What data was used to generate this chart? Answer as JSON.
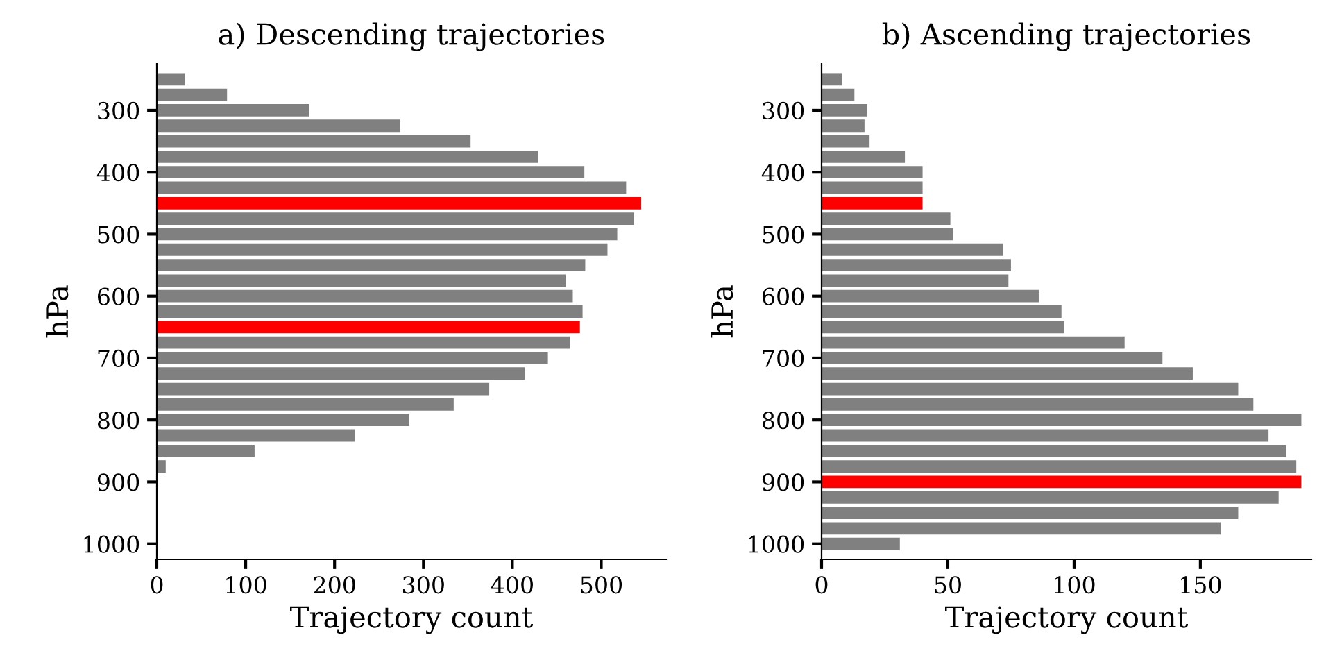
{
  "chart_data": [
    {
      "type": "bar",
      "orientation": "horizontal",
      "title": "a) Descending trajectories",
      "xlabel": "Trajectory count",
      "ylabel": "hPa",
      "x": [
        250,
        275,
        300,
        325,
        350,
        375,
        400,
        425,
        450,
        475,
        500,
        525,
        550,
        575,
        600,
        625,
        650,
        675,
        700,
        725,
        750,
        775,
        800,
        825,
        850,
        875,
        900,
        925,
        950,
        975,
        1000
      ],
      "values": [
        32,
        79,
        171,
        274,
        353,
        429,
        481,
        528,
        545,
        537,
        518,
        507,
        482,
        460,
        468,
        479,
        476,
        465,
        440,
        414,
        374,
        334,
        284,
        223,
        110,
        10,
        0,
        0,
        0,
        0,
        0
      ],
      "colors": [
        "#808080",
        "#808080",
        "#808080",
        "#808080",
        "#808080",
        "#808080",
        "#808080",
        "#808080",
        "#ff0000",
        "#808080",
        "#808080",
        "#808080",
        "#808080",
        "#808080",
        "#808080",
        "#808080",
        "#ff0000",
        "#808080",
        "#808080",
        "#808080",
        "#808080",
        "#808080",
        "#808080",
        "#808080",
        "#808080",
        "#808080",
        "#808080",
        "#808080",
        "#808080",
        "#808080",
        "#808080"
      ],
      "xlim": [
        0,
        573
      ],
      "xticks": [
        0,
        100,
        200,
        300,
        400,
        500
      ],
      "ylim": [
        1025,
        225
      ],
      "yticks": [
        300,
        400,
        500,
        600,
        700,
        800,
        900,
        1000
      ],
      "grid": false,
      "legend": false
    },
    {
      "type": "bar",
      "orientation": "horizontal",
      "title": "b) Ascending trajectories",
      "xlabel": "Trajectory count",
      "ylabel": "hPa",
      "x": [
        250,
        275,
        300,
        325,
        350,
        375,
        400,
        425,
        450,
        475,
        500,
        525,
        550,
        575,
        600,
        625,
        650,
        675,
        700,
        725,
        750,
        775,
        800,
        825,
        850,
        875,
        900,
        925,
        950,
        975,
        1000
      ],
      "values": [
        8,
        13,
        18,
        17,
        19,
        33,
        40,
        40,
        40,
        51,
        52,
        72,
        75,
        74,
        86,
        95,
        96,
        120,
        135,
        147,
        165,
        171,
        190,
        177,
        184,
        188,
        190,
        181,
        165,
        158,
        31
      ],
      "colors": [
        "#808080",
        "#808080",
        "#808080",
        "#808080",
        "#808080",
        "#808080",
        "#808080",
        "#808080",
        "#ff0000",
        "#808080",
        "#808080",
        "#808080",
        "#808080",
        "#808080",
        "#808080",
        "#808080",
        "#808080",
        "#808080",
        "#808080",
        "#808080",
        "#808080",
        "#808080",
        "#808080",
        "#808080",
        "#808080",
        "#808080",
        "#ff0000",
        "#808080",
        "#808080",
        "#808080",
        "#808080"
      ],
      "xlim": [
        0,
        194
      ],
      "xticks": [
        0,
        50,
        100,
        150
      ],
      "ylim": [
        1025,
        225
      ],
      "yticks": [
        300,
        400,
        500,
        600,
        700,
        800,
        900,
        1000
      ],
      "grid": false,
      "legend": false
    }
  ]
}
